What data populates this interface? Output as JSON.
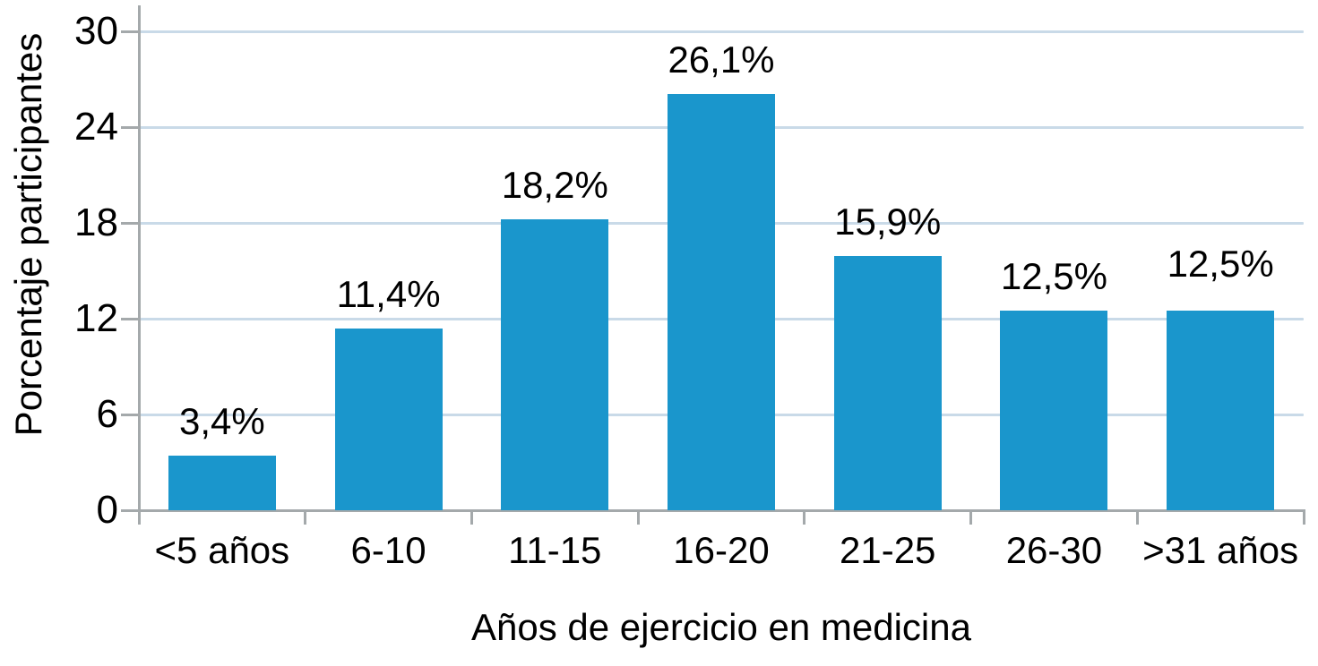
{
  "chart_data": {
    "type": "bar",
    "title": "",
    "categories": [
      "<5 años",
      "6-10",
      "11-15",
      "16-20",
      "21-25",
      "26-30",
      ">31 años"
    ],
    "values": [
      3.4,
      11.4,
      18.2,
      26.1,
      15.9,
      12.5,
      12.5
    ],
    "bar_labels": [
      "3,4%",
      "11,4%",
      "18,2%",
      "26,1%",
      "15,9%",
      "12,5%",
      "12,5%"
    ],
    "xlabel": "Años de ejercicio en medicina",
    "ylabel": "Porcentaje participantes",
    "yticks": [
      0,
      6,
      12,
      18,
      24,
      30
    ],
    "ytick_labels": [
      "0",
      "6",
      "12",
      "18",
      "24",
      "30"
    ],
    "ylim": [
      0,
      30
    ],
    "grid": true,
    "gridline_values": [
      6,
      12,
      18,
      24,
      30
    ],
    "legend": "none",
    "label_dy": [
      0,
      0,
      0,
      0,
      0,
      0,
      14
    ],
    "colors": {
      "bar": "#1a96cc",
      "gridline": "#c9dae8",
      "axis": "#a4a9ab",
      "text": "#000000"
    }
  }
}
